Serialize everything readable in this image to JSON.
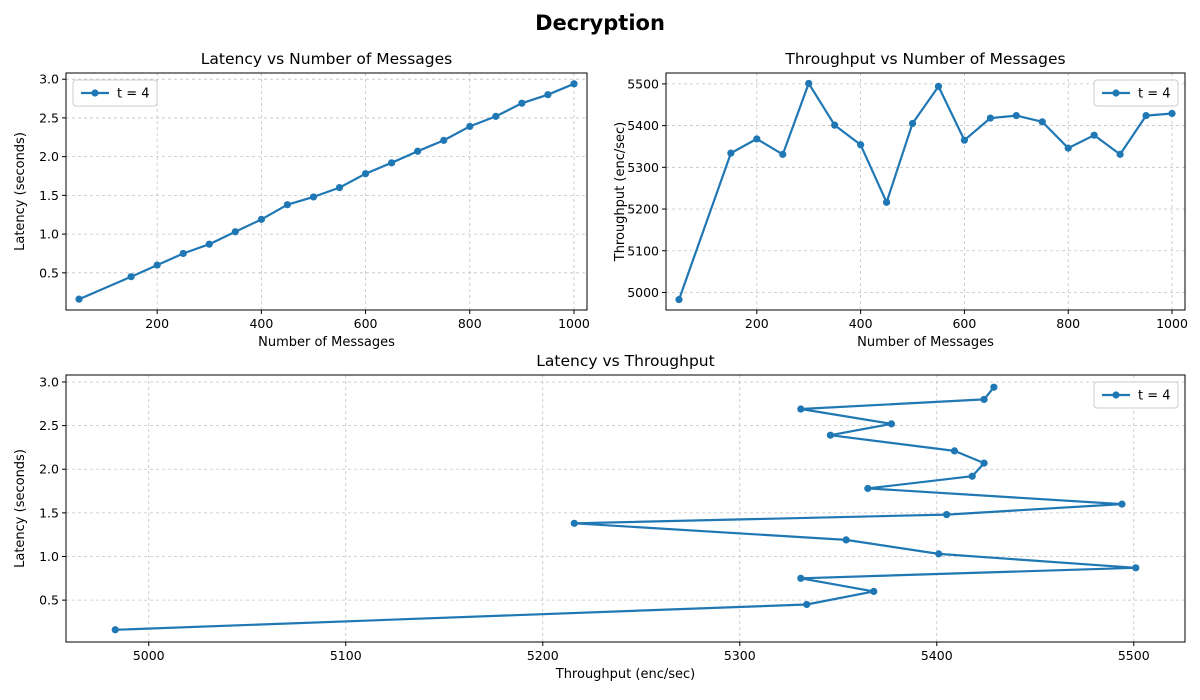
{
  "figure": {
    "title": "Decryption"
  },
  "colors": {
    "series": "#1f77b4",
    "grid": "#b0b0b0",
    "axis": "#000000"
  },
  "chart_data": [
    {
      "type": "line",
      "title": "Latency vs Number of Messages",
      "xlabel": "Number of Messages",
      "ylabel": "Latency (seconds)",
      "xlim": [
        25,
        1025
      ],
      "ylim": [
        0.02,
        3.08
      ],
      "xticks": [
        200,
        400,
        600,
        800,
        1000
      ],
      "yticks": [
        0.5,
        1.0,
        1.5,
        2.0,
        2.5,
        3.0
      ],
      "tick_decimals": {
        "x": 0,
        "y": 1
      },
      "grid": true,
      "legend": "top-left",
      "series": [
        {
          "name": "t = 4",
          "x": [
            50,
            150,
            200,
            250,
            300,
            350,
            400,
            450,
            500,
            550,
            600,
            650,
            700,
            750,
            800,
            850,
            900,
            950,
            1000
          ],
          "y": [
            0.16,
            0.45,
            0.6,
            0.75,
            0.87,
            1.03,
            1.19,
            1.38,
            1.48,
            1.6,
            1.78,
            1.92,
            2.07,
            2.21,
            2.39,
            2.52,
            2.69,
            2.8,
            2.94
          ]
        }
      ]
    },
    {
      "type": "line",
      "title": "Throughput vs Number of Messages",
      "xlabel": "Number of Messages",
      "ylabel": "Throughput (enc/sec)",
      "xlim": [
        25,
        1025
      ],
      "ylim": [
        4958,
        5526
      ],
      "xticks": [
        200,
        400,
        600,
        800,
        1000
      ],
      "yticks": [
        5000,
        5100,
        5200,
        5300,
        5400,
        5500
      ],
      "tick_decimals": {
        "x": 0,
        "y": 0
      },
      "grid": true,
      "legend": "top-right",
      "series": [
        {
          "name": "t = 4",
          "x": [
            50,
            150,
            200,
            250,
            300,
            350,
            400,
            450,
            500,
            550,
            600,
            650,
            700,
            750,
            800,
            850,
            900,
            950,
            1000
          ],
          "y": [
            4983,
            5334,
            5368,
            5331,
            5501,
            5401,
            5354,
            5216,
            5405,
            5494,
            5365,
            5418,
            5424,
            5409,
            5346,
            5377,
            5331,
            5424,
            5429
          ]
        }
      ]
    },
    {
      "type": "line",
      "title": "Latency vs Throughput",
      "xlabel": "Throughput (enc/sec)",
      "ylabel": "Latency (seconds)",
      "xlim": [
        4958,
        5526
      ],
      "ylim": [
        0.02,
        3.08
      ],
      "xticks": [
        5000,
        5100,
        5200,
        5300,
        5400,
        5500
      ],
      "yticks": [
        0.5,
        1.0,
        1.5,
        2.0,
        2.5,
        3.0
      ],
      "tick_decimals": {
        "x": 0,
        "y": 1
      },
      "grid": true,
      "legend": "top-right",
      "series": [
        {
          "name": "t = 4",
          "x": [
            4983,
            5334,
            5368,
            5331,
            5501,
            5401,
            5354,
            5216,
            5405,
            5494,
            5365,
            5418,
            5424,
            5409,
            5346,
            5377,
            5331,
            5424,
            5429
          ],
          "y": [
            0.16,
            0.45,
            0.6,
            0.75,
            0.87,
            1.03,
            1.19,
            1.38,
            1.48,
            1.6,
            1.78,
            1.92,
            2.07,
            2.21,
            2.39,
            2.52,
            2.69,
            2.8,
            2.94
          ]
        }
      ]
    }
  ]
}
